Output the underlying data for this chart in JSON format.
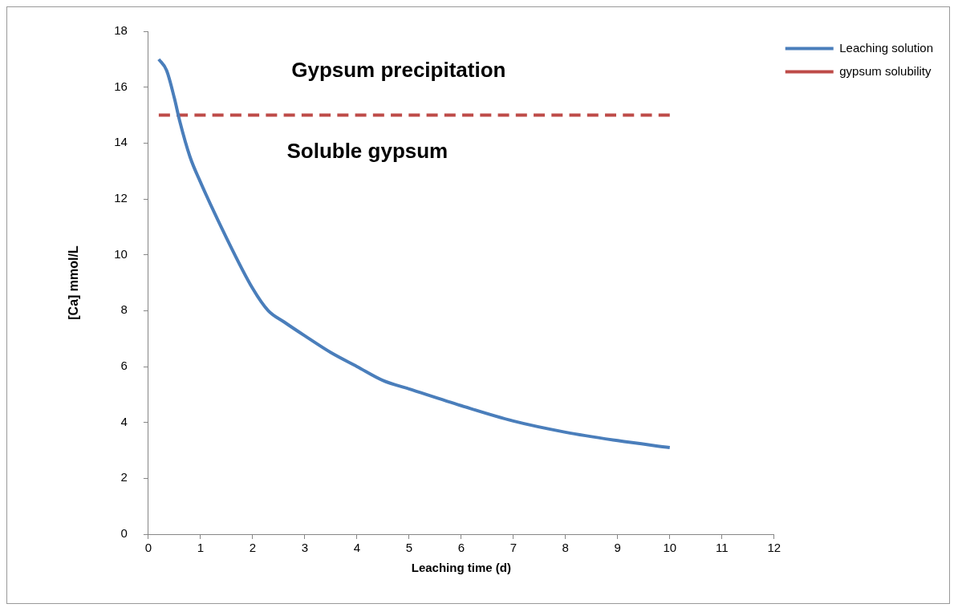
{
  "chart_data": {
    "type": "line",
    "xlabel": "Leaching time (d)",
    "ylabel": "[Ca] mmol/L",
    "xlim": [
      0,
      12
    ],
    "xticks": [
      0,
      1,
      2,
      3,
      4,
      5,
      6,
      7,
      8,
      9,
      10,
      11,
      12
    ],
    "ylim": [
      0,
      18
    ],
    "yticks": [
      0,
      2,
      4,
      6,
      8,
      10,
      12,
      14,
      16,
      18
    ],
    "grid": false,
    "legend": "top right",
    "marker": "none",
    "series": [
      {
        "name": "Leaching solution",
        "color": "#4a7ebb",
        "line_style": "solid",
        "x": [
          0.2,
          0.35,
          0.5,
          0.6,
          0.8,
          1,
          1.5,
          2,
          2.3,
          2.6,
          3,
          3.5,
          4,
          4.5,
          5,
          6,
          7,
          8,
          9,
          10
        ],
        "values": [
          17.0,
          16.6,
          15.6,
          14.8,
          13.5,
          12.6,
          10.6,
          8.8,
          8.0,
          7.6,
          7.1,
          6.5,
          6.0,
          5.5,
          5.2,
          4.6,
          4.05,
          3.65,
          3.35,
          3.1
        ]
      },
      {
        "name": "gypsum solubility",
        "color": "#be4b48",
        "line_style": "dashed",
        "x": [
          0.2,
          10
        ],
        "values": [
          15,
          15
        ]
      }
    ],
    "annotations": [
      "Gypsum precipitation",
      "Soluble gypsum"
    ]
  }
}
